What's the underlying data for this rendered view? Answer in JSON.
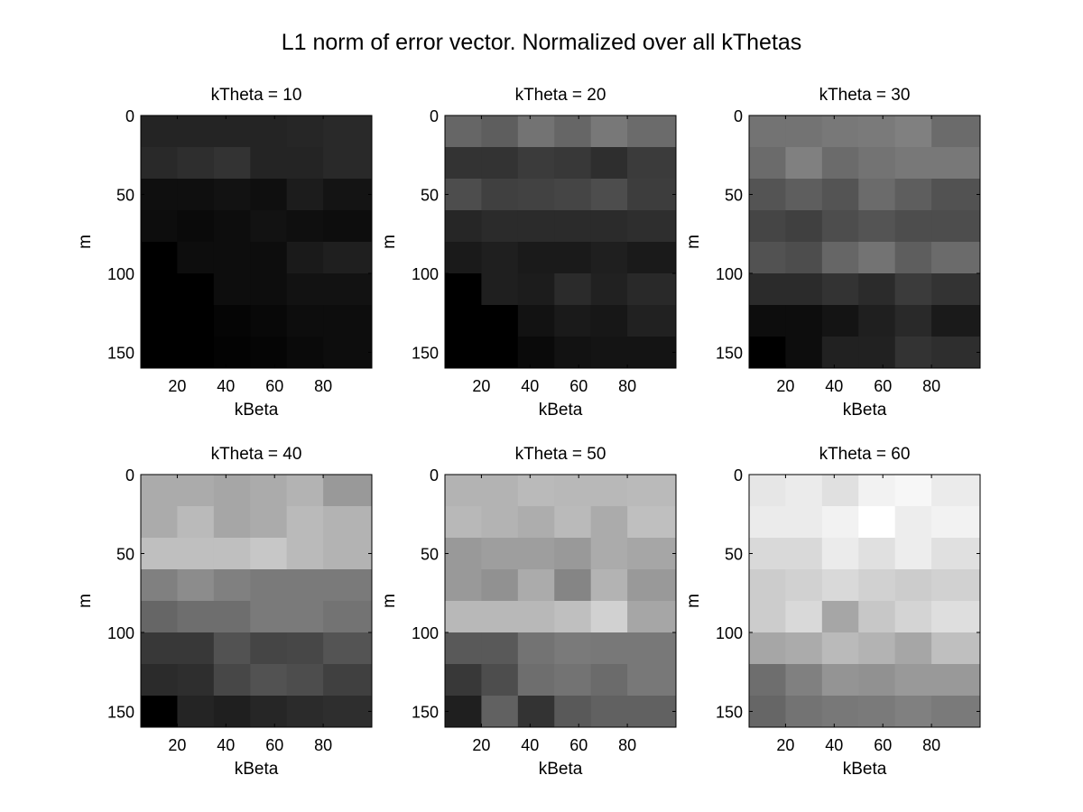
{
  "figure": {
    "title": "L1 norm of error vector. Normalized over all kThetas",
    "background": "#ffffff"
  },
  "chart_data": [
    {
      "type": "heatmap",
      "title": "kTheta = 10",
      "xlabel": "kBeta",
      "ylabel": "m",
      "xlim": [
        5,
        100
      ],
      "ylim": [
        160,
        0
      ],
      "x_ticks": [
        20,
        40,
        60,
        80
      ],
      "y_ticks": [
        0,
        50,
        100,
        150
      ],
      "x_edges": [
        5,
        20,
        35,
        50,
        65,
        80,
        95
      ],
      "y_edges": [
        0,
        20,
        40,
        60,
        80,
        100,
        120,
        140,
        160
      ],
      "colormap": "gray",
      "values": [
        [
          0.14,
          0.14,
          0.14,
          0.14,
          0.15,
          0.16
        ],
        [
          0.16,
          0.18,
          0.2,
          0.14,
          0.14,
          0.16
        ],
        [
          0.06,
          0.06,
          0.07,
          0.06,
          0.11,
          0.08
        ],
        [
          0.05,
          0.04,
          0.05,
          0.07,
          0.06,
          0.05
        ],
        [
          0.0,
          0.05,
          0.05,
          0.05,
          0.1,
          0.12
        ],
        [
          0.0,
          0.0,
          0.05,
          0.05,
          0.07,
          0.07
        ],
        [
          0.0,
          0.0,
          0.02,
          0.03,
          0.05,
          0.05
        ],
        [
          0.0,
          0.0,
          0.01,
          0.02,
          0.04,
          0.05
        ]
      ]
    },
    {
      "type": "heatmap",
      "title": "kTheta = 20",
      "xlabel": "kBeta",
      "ylabel": "m",
      "xlim": [
        5,
        100
      ],
      "ylim": [
        160,
        0
      ],
      "x_ticks": [
        20,
        40,
        60,
        80
      ],
      "y_ticks": [
        0,
        50,
        100,
        150
      ],
      "x_edges": [
        5,
        20,
        35,
        50,
        65,
        80,
        95
      ],
      "y_edges": [
        0,
        20,
        40,
        60,
        80,
        100,
        120,
        140,
        160
      ],
      "colormap": "gray",
      "values": [
        [
          0.4,
          0.37,
          0.45,
          0.4,
          0.47,
          0.42
        ],
        [
          0.2,
          0.2,
          0.23,
          0.22,
          0.18,
          0.23
        ],
        [
          0.3,
          0.25,
          0.26,
          0.27,
          0.3,
          0.24
        ],
        [
          0.15,
          0.17,
          0.17,
          0.17,
          0.17,
          0.18
        ],
        [
          0.1,
          0.12,
          0.1,
          0.1,
          0.12,
          0.1
        ],
        [
          0.0,
          0.12,
          0.11,
          0.17,
          0.13,
          0.16
        ],
        [
          0.0,
          0.0,
          0.07,
          0.1,
          0.09,
          0.13
        ],
        [
          0.0,
          0.0,
          0.04,
          0.07,
          0.08,
          0.08
        ]
      ]
    },
    {
      "type": "heatmap",
      "title": "kTheta = 30",
      "xlabel": "kBeta",
      "ylabel": "m",
      "xlim": [
        5,
        100
      ],
      "ylim": [
        160,
        0
      ],
      "x_ticks": [
        20,
        40,
        60,
        80
      ],
      "y_ticks": [
        0,
        50,
        100,
        150
      ],
      "x_edges": [
        5,
        20,
        35,
        50,
        65,
        80,
        95
      ],
      "y_edges": [
        0,
        20,
        40,
        60,
        80,
        100,
        120,
        140,
        160
      ],
      "colormap": "gray",
      "values": [
        [
          0.45,
          0.45,
          0.47,
          0.48,
          0.5,
          0.42
        ],
        [
          0.42,
          0.5,
          0.42,
          0.45,
          0.47,
          0.47
        ],
        [
          0.33,
          0.37,
          0.33,
          0.42,
          0.37,
          0.32
        ],
        [
          0.27,
          0.25,
          0.3,
          0.33,
          0.3,
          0.3
        ],
        [
          0.32,
          0.3,
          0.4,
          0.45,
          0.37,
          0.42
        ],
        [
          0.17,
          0.17,
          0.2,
          0.17,
          0.23,
          0.2
        ],
        [
          0.05,
          0.05,
          0.08,
          0.12,
          0.16,
          0.1
        ],
        [
          0.0,
          0.05,
          0.13,
          0.13,
          0.2,
          0.18
        ]
      ]
    },
    {
      "type": "heatmap",
      "title": "kTheta = 40",
      "xlabel": "kBeta",
      "ylabel": "m",
      "xlim": [
        5,
        100
      ],
      "ylim": [
        160,
        0
      ],
      "x_ticks": [
        20,
        40,
        60,
        80
      ],
      "y_ticks": [
        0,
        50,
        100,
        150
      ],
      "x_edges": [
        5,
        20,
        35,
        50,
        65,
        80,
        95
      ],
      "y_edges": [
        0,
        20,
        40,
        60,
        80,
        100,
        120,
        140,
        160
      ],
      "colormap": "gray",
      "values": [
        [
          0.67,
          0.67,
          0.65,
          0.67,
          0.7,
          0.6
        ],
        [
          0.67,
          0.73,
          0.65,
          0.67,
          0.73,
          0.7
        ],
        [
          0.75,
          0.75,
          0.75,
          0.78,
          0.73,
          0.7
        ],
        [
          0.5,
          0.55,
          0.5,
          0.48,
          0.48,
          0.48
        ],
        [
          0.4,
          0.43,
          0.43,
          0.48,
          0.48,
          0.45
        ],
        [
          0.22,
          0.22,
          0.32,
          0.27,
          0.28,
          0.33
        ],
        [
          0.17,
          0.18,
          0.28,
          0.32,
          0.3,
          0.25
        ],
        [
          0.0,
          0.14,
          0.12,
          0.15,
          0.17,
          0.18
        ]
      ]
    },
    {
      "type": "heatmap",
      "title": "kTheta = 50",
      "xlabel": "kBeta",
      "ylabel": "m",
      "xlim": [
        5,
        100
      ],
      "ylim": [
        160,
        0
      ],
      "x_ticks": [
        20,
        40,
        60,
        80
      ],
      "y_ticks": [
        0,
        50,
        100,
        150
      ],
      "x_edges": [
        5,
        20,
        35,
        50,
        65,
        80,
        95
      ],
      "y_edges": [
        0,
        20,
        40,
        60,
        80,
        100,
        120,
        140,
        160
      ],
      "colormap": "gray",
      "values": [
        [
          0.7,
          0.7,
          0.73,
          0.72,
          0.72,
          0.73
        ],
        [
          0.72,
          0.7,
          0.68,
          0.73,
          0.67,
          0.75
        ],
        [
          0.6,
          0.62,
          0.62,
          0.6,
          0.67,
          0.65
        ],
        [
          0.6,
          0.57,
          0.67,
          0.52,
          0.7,
          0.6
        ],
        [
          0.72,
          0.72,
          0.72,
          0.75,
          0.82,
          0.65
        ],
        [
          0.35,
          0.35,
          0.45,
          0.48,
          0.47,
          0.47
        ],
        [
          0.22,
          0.3,
          0.43,
          0.45,
          0.42,
          0.47
        ],
        [
          0.12,
          0.38,
          0.2,
          0.35,
          0.38,
          0.38
        ]
      ]
    },
    {
      "type": "heatmap",
      "title": "kTheta = 60",
      "xlabel": "kBeta",
      "ylabel": "m",
      "xlim": [
        5,
        100
      ],
      "ylim": [
        160,
        0
      ],
      "x_ticks": [
        20,
        40,
        60,
        80
      ],
      "y_ticks": [
        0,
        50,
        100,
        150
      ],
      "x_edges": [
        5,
        20,
        35,
        50,
        65,
        80,
        95
      ],
      "y_edges": [
        0,
        20,
        40,
        60,
        80,
        100,
        120,
        140,
        160
      ],
      "colormap": "gray",
      "values": [
        [
          0.9,
          0.92,
          0.88,
          0.95,
          0.97,
          0.92
        ],
        [
          0.92,
          0.92,
          0.95,
          1.0,
          0.93,
          0.95
        ],
        [
          0.85,
          0.85,
          0.92,
          0.88,
          0.93,
          0.88
        ],
        [
          0.8,
          0.82,
          0.85,
          0.82,
          0.8,
          0.82
        ],
        [
          0.8,
          0.85,
          0.65,
          0.78,
          0.83,
          0.87
        ],
        [
          0.65,
          0.67,
          0.73,
          0.7,
          0.65,
          0.75
        ],
        [
          0.43,
          0.5,
          0.58,
          0.57,
          0.6,
          0.6
        ],
        [
          0.4,
          0.45,
          0.47,
          0.48,
          0.5,
          0.48
        ]
      ]
    }
  ]
}
